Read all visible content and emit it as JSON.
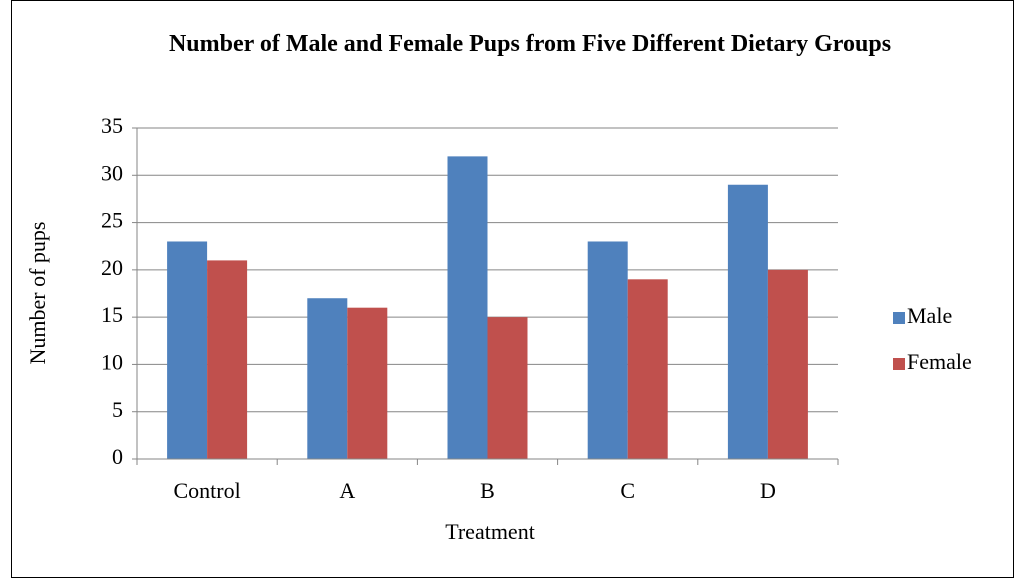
{
  "chart_data": {
    "type": "bar",
    "title": "Number of Male and Female Pups from Five Different Dietary Groups",
    "x_label": "Treatment",
    "y_label": "Number of pups",
    "categories": [
      "Control",
      "A",
      "B",
      "C",
      "D"
    ],
    "series": [
      {
        "name": "Male",
        "color": "#4f81bd",
        "values": [
          23,
          17,
          32,
          23,
          29
        ]
      },
      {
        "name": "Female",
        "color": "#c0504d",
        "values": [
          21,
          16,
          15,
          19,
          20
        ]
      }
    ],
    "ylim": [
      0,
      35
    ],
    "yticks": [
      0,
      5,
      10,
      15,
      20,
      25,
      30,
      35
    ],
    "grid": true,
    "legend": "right"
  }
}
